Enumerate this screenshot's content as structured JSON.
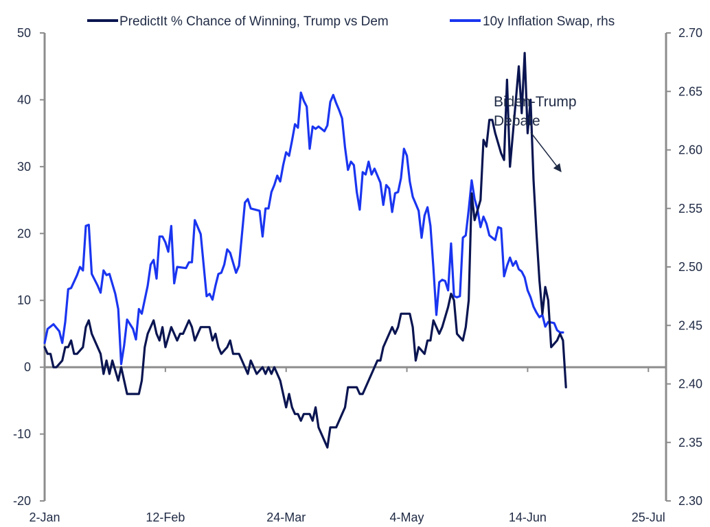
{
  "chart_data": {
    "type": "line",
    "title": "",
    "xlabel": "",
    "ylabel_left": "",
    "ylabel_right": "",
    "x_ticks": [
      {
        "label": "2-Jan",
        "day": 0
      },
      {
        "label": "12-Feb",
        "day": 41
      },
      {
        "label": "24-Mar",
        "day": 82
      },
      {
        "label": "4-May",
        "day": 123
      },
      {
        "label": "14-Jun",
        "day": 164
      },
      {
        "label": "25-Jul",
        "day": 205
      }
    ],
    "x_range": [
      0,
      211
    ],
    "y_left": {
      "min": -20,
      "max": 50,
      "ticks": [
        "-20",
        "-10",
        "0",
        "10",
        "20",
        "30",
        "40",
        "50"
      ]
    },
    "y_right": {
      "min": 2.3,
      "max": 2.7,
      "ticks": [
        "2.30",
        "2.35",
        "2.40",
        "2.45",
        "2.50",
        "2.55",
        "2.60",
        "2.65",
        "2.70"
      ]
    },
    "legend": {
      "position": "top"
    },
    "colors": {
      "trump": "#0a1551",
      "swap": "#1a35f0",
      "axis": "#8c8c8c",
      "text": "#1f2a44"
    },
    "series": [
      {
        "name": "PredictIt % Chance of Winning, Trump vs Dem",
        "axis": "left",
        "points": [
          [
            0,
            3
          ],
          [
            1,
            2
          ],
          [
            2,
            2
          ],
          [
            3,
            0
          ],
          [
            4,
            0
          ],
          [
            6,
            1
          ],
          [
            7,
            3
          ],
          [
            8,
            3
          ],
          [
            9,
            4
          ],
          [
            10,
            2
          ],
          [
            11,
            2
          ],
          [
            13,
            3
          ],
          [
            14,
            6
          ],
          [
            15,
            7
          ],
          [
            16,
            5
          ],
          [
            17,
            4
          ],
          [
            19,
            2
          ],
          [
            20,
            -1
          ],
          [
            21,
            1
          ],
          [
            22,
            -1
          ],
          [
            23,
            1
          ],
          [
            25,
            -2
          ],
          [
            26,
            0
          ],
          [
            28,
            -4
          ],
          [
            32,
            -4
          ],
          [
            33,
            -2
          ],
          [
            34,
            3
          ],
          [
            35,
            5
          ],
          [
            37,
            7
          ],
          [
            38,
            5
          ],
          [
            39,
            4
          ],
          [
            40,
            6
          ],
          [
            41,
            3
          ],
          [
            43,
            6
          ],
          [
            44,
            5
          ],
          [
            45,
            4
          ],
          [
            46,
            5
          ],
          [
            47,
            5
          ],
          [
            49,
            7
          ],
          [
            50,
            6
          ],
          [
            51,
            4
          ],
          [
            53,
            6
          ],
          [
            56,
            6
          ],
          [
            57,
            4
          ],
          [
            58,
            5
          ],
          [
            59,
            3
          ],
          [
            60,
            2
          ],
          [
            62,
            3
          ],
          [
            63,
            4
          ],
          [
            64,
            2
          ],
          [
            66,
            2
          ],
          [
            67,
            1
          ],
          [
            69,
            -1
          ],
          [
            70,
            1
          ],
          [
            71,
            0
          ],
          [
            72,
            -1
          ],
          [
            74,
            0
          ],
          [
            75,
            -1
          ],
          [
            76,
            0
          ],
          [
            77,
            -1
          ],
          [
            78,
            0
          ],
          [
            80,
            -2
          ],
          [
            81,
            -4
          ],
          [
            82,
            -6
          ],
          [
            83,
            -4
          ],
          [
            84,
            -6
          ],
          [
            85,
            -7
          ],
          [
            86,
            -7
          ],
          [
            87,
            -8
          ],
          [
            88,
            -7
          ],
          [
            90,
            -7
          ],
          [
            91,
            -8
          ],
          [
            92,
            -6
          ],
          [
            93,
            -9
          ],
          [
            95,
            -11
          ],
          [
            96,
            -12
          ],
          [
            97,
            -9
          ],
          [
            99,
            -9
          ],
          [
            100,
            -8
          ],
          [
            101,
            -7
          ],
          [
            102,
            -6
          ],
          [
            103,
            -3
          ],
          [
            106,
            -3
          ],
          [
            107,
            -4
          ],
          [
            108,
            -4
          ],
          [
            110,
            -2
          ],
          [
            112,
            0
          ],
          [
            113,
            1
          ],
          [
            114,
            1
          ],
          [
            115,
            3
          ],
          [
            117,
            5
          ],
          [
            118,
            6
          ],
          [
            119,
            5
          ],
          [
            120,
            6
          ],
          [
            121,
            8
          ],
          [
            124,
            8
          ],
          [
            125,
            6
          ],
          [
            126,
            1
          ],
          [
            127,
            3
          ],
          [
            129,
            2
          ],
          [
            130,
            4
          ],
          [
            131,
            4
          ],
          [
            132,
            7
          ],
          [
            133,
            6
          ],
          [
            134,
            5
          ],
          [
            135,
            6
          ],
          [
            137,
            9
          ],
          [
            138,
            11
          ],
          [
            139,
            10
          ],
          [
            140,
            5
          ],
          [
            142,
            4
          ],
          [
            143,
            6
          ],
          [
            144,
            10
          ],
          [
            145,
            26
          ],
          [
            146,
            22
          ],
          [
            148,
            25
          ],
          [
            149,
            34
          ],
          [
            150,
            33
          ],
          [
            151,
            37
          ],
          [
            152,
            37
          ],
          [
            153,
            35
          ],
          [
            155,
            32
          ],
          [
            156,
            31
          ],
          [
            157,
            43
          ],
          [
            158,
            30
          ],
          [
            160,
            40
          ],
          [
            161,
            45
          ],
          [
            162,
            38
          ],
          [
            163,
            47
          ],
          [
            164,
            35
          ],
          [
            165,
            40
          ],
          [
            166,
            28
          ],
          [
            167,
            20
          ],
          [
            168,
            13
          ],
          [
            169,
            8
          ],
          [
            170,
            12
          ],
          [
            171,
            10
          ],
          [
            172,
            3
          ],
          [
            174,
            4
          ],
          [
            175,
            5
          ],
          [
            176,
            4
          ],
          [
            177,
            -3
          ]
        ]
      },
      {
        "name": "10y Inflation Swap, rhs",
        "axis": "right",
        "points": [
          [
            0,
            2.435
          ],
          [
            1,
            2.447
          ],
          [
            3,
            2.451
          ],
          [
            5,
            2.445
          ],
          [
            6,
            2.435
          ],
          [
            7,
            2.453
          ],
          [
            8,
            2.481
          ],
          [
            9,
            2.482
          ],
          [
            11,
            2.493
          ],
          [
            12,
            2.5
          ],
          [
            13,
            2.497
          ],
          [
            14,
            2.535
          ],
          [
            15,
            2.536
          ],
          [
            16,
            2.494
          ],
          [
            18,
            2.484
          ],
          [
            19,
            2.478
          ],
          [
            20,
            2.497
          ],
          [
            21,
            2.493
          ],
          [
            22,
            2.494
          ],
          [
            24,
            2.477
          ],
          [
            25,
            2.464
          ],
          [
            26,
            2.417
          ],
          [
            27,
            2.433
          ],
          [
            28,
            2.455
          ],
          [
            29,
            2.451
          ],
          [
            30,
            2.447
          ],
          [
            31,
            2.438
          ],
          [
            32,
            2.464
          ],
          [
            33,
            2.46
          ],
          [
            35,
            2.484
          ],
          [
            36,
            2.502
          ],
          [
            37,
            2.506
          ],
          [
            38,
            2.49
          ],
          [
            39,
            2.526
          ],
          [
            40,
            2.526
          ],
          [
            41,
            2.521
          ],
          [
            42,
            2.513
          ],
          [
            43,
            2.535
          ],
          [
            44,
            2.486
          ],
          [
            45,
            2.5
          ],
          [
            48,
            2.499
          ],
          [
            49,
            2.504
          ],
          [
            50,
            2.504
          ],
          [
            51,
            2.54
          ],
          [
            53,
            2.528
          ],
          [
            55,
            2.475
          ],
          [
            56,
            2.477
          ],
          [
            57,
            2.472
          ],
          [
            58,
            2.484
          ],
          [
            59,
            2.494
          ],
          [
            60,
            2.495
          ],
          [
            61,
            2.502
          ],
          [
            62,
            2.515
          ],
          [
            63,
            2.512
          ],
          [
            65,
            2.495
          ],
          [
            66,
            2.501
          ],
          [
            68,
            2.555
          ],
          [
            69,
            2.558
          ],
          [
            70,
            2.55
          ],
          [
            73,
            2.548
          ],
          [
            74,
            2.526
          ],
          [
            75,
            2.55
          ],
          [
            76,
            2.55
          ],
          [
            77,
            2.564
          ],
          [
            78,
            2.57
          ],
          [
            79,
            2.578
          ],
          [
            80,
            2.573
          ],
          [
            81,
            2.587
          ],
          [
            82,
            2.598
          ],
          [
            83,
            2.595
          ],
          [
            84,
            2.608
          ],
          [
            85,
            2.622
          ],
          [
            86,
            2.619
          ],
          [
            87,
            2.649
          ],
          [
            88,
            2.642
          ],
          [
            89,
            2.637
          ],
          [
            90,
            2.601
          ],
          [
            91,
            2.62
          ],
          [
            92,
            2.618
          ],
          [
            93,
            2.62
          ],
          [
            94,
            2.618
          ],
          [
            95,
            2.616
          ],
          [
            96,
            2.621
          ],
          [
            97,
            2.641
          ],
          [
            98,
            2.647
          ],
          [
            99,
            2.64
          ],
          [
            100,
            2.634
          ],
          [
            101,
            2.627
          ],
          [
            102,
            2.602
          ],
          [
            103,
            2.583
          ],
          [
            104,
            2.59
          ],
          [
            105,
            2.587
          ],
          [
            106,
            2.564
          ],
          [
            107,
            2.549
          ],
          [
            108,
            2.581
          ],
          [
            109,
            2.579
          ],
          [
            110,
            2.59
          ],
          [
            111,
            2.579
          ],
          [
            112,
            2.584
          ],
          [
            113,
            2.578
          ],
          [
            114,
            2.572
          ],
          [
            115,
            2.553
          ],
          [
            116,
            2.57
          ],
          [
            117,
            2.567
          ],
          [
            118,
            2.547
          ],
          [
            119,
            2.563
          ],
          [
            120,
            2.564
          ],
          [
            121,
            2.576
          ],
          [
            122,
            2.601
          ],
          [
            123,
            2.595
          ],
          [
            124,
            2.573
          ],
          [
            125,
            2.56
          ],
          [
            126,
            2.554
          ],
          [
            127,
            2.548
          ],
          [
            128,
            2.525
          ],
          [
            129,
            2.544
          ],
          [
            130,
            2.551
          ],
          [
            131,
            2.535
          ],
          [
            132,
            2.499
          ],
          [
            133,
            2.459
          ],
          [
            134,
            2.487
          ],
          [
            135,
            2.489
          ],
          [
            136,
            2.488
          ],
          [
            137,
            2.48
          ],
          [
            138,
            2.52
          ],
          [
            139,
            2.475
          ],
          [
            140,
            2.474
          ],
          [
            141,
            2.475
          ],
          [
            142,
            2.525
          ],
          [
            143,
            2.527
          ],
          [
            144,
            2.549
          ],
          [
            145,
            2.574
          ],
          [
            146,
            2.558
          ],
          [
            147,
            2.549
          ],
          [
            148,
            2.534
          ],
          [
            149,
            2.543
          ],
          [
            150,
            2.537
          ],
          [
            151,
            2.527
          ],
          [
            152,
            2.525
          ],
          [
            153,
            2.523
          ],
          [
            154,
            2.534
          ],
          [
            155,
            2.533
          ],
          [
            156,
            2.492
          ],
          [
            157,
            2.501
          ],
          [
            158,
            2.508
          ],
          [
            159,
            2.501
          ],
          [
            160,
            2.505
          ],
          [
            161,
            2.498
          ],
          [
            162,
            2.496
          ],
          [
            163,
            2.491
          ],
          [
            164,
            2.48
          ],
          [
            165,
            2.474
          ],
          [
            166,
            2.466
          ],
          [
            167,
            2.461
          ],
          [
            168,
            2.457
          ],
          [
            169,
            2.459
          ],
          [
            170,
            2.449
          ],
          [
            171,
            2.453
          ],
          [
            173,
            2.452
          ],
          [
            174,
            2.446
          ],
          [
            175,
            2.444
          ],
          [
            176,
            2.444
          ]
        ]
      }
    ],
    "annotations": [
      {
        "lines": [
          "Biden-Trump",
          "Debate"
        ],
        "arrow_to_day": 145,
        "arrow_to_series": "swap"
      }
    ]
  }
}
